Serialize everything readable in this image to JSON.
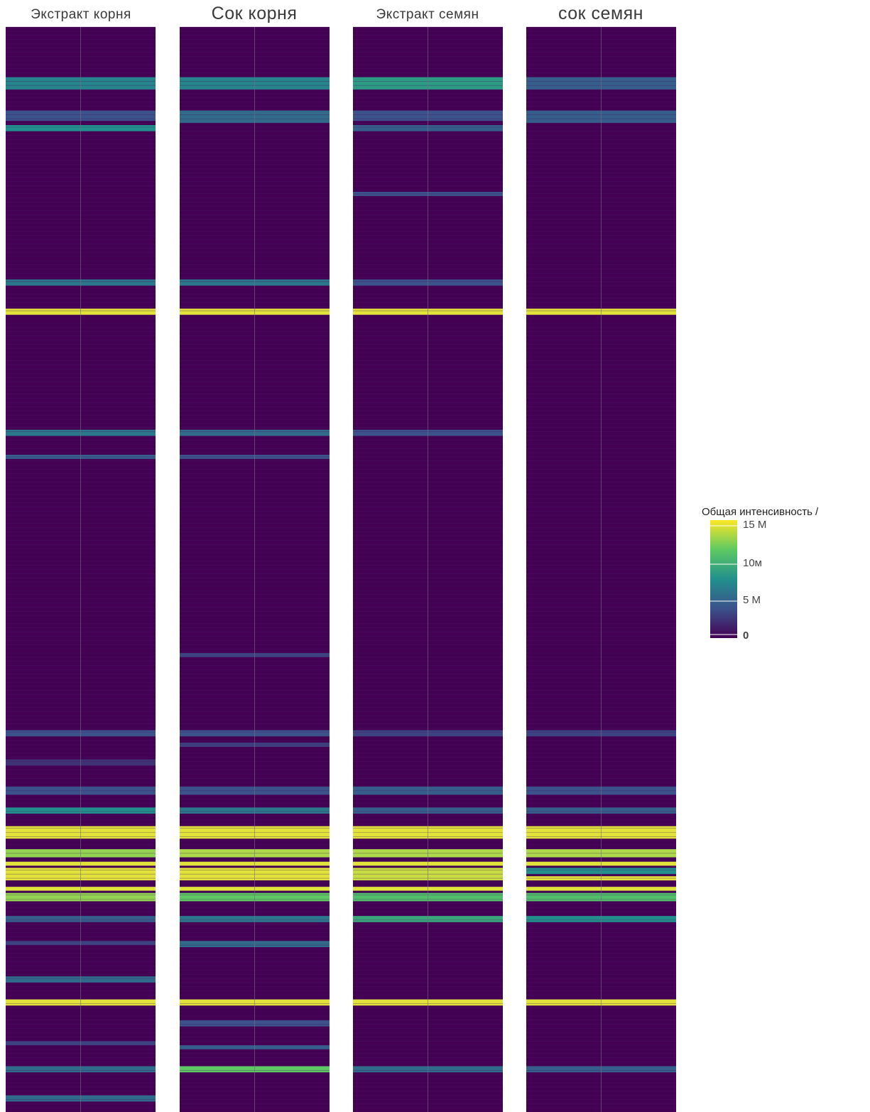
{
  "chart_data": {
    "type": "heatmap",
    "panels": [
      {
        "title": "Экстракт корня",
        "bands": [
          [
            24,
            30,
            0.45
          ],
          [
            40,
            45,
            0.25
          ],
          [
            47,
            50,
            0.5
          ],
          [
            121,
            124,
            0.4
          ],
          [
            135,
            138,
            1.0
          ],
          [
            193,
            196,
            0.4
          ],
          [
            205,
            207,
            0.3
          ],
          [
            337,
            340,
            0.25
          ],
          [
            351,
            354,
            0.15
          ],
          [
            364,
            368,
            0.25
          ],
          [
            374,
            377,
            0.5
          ],
          [
            383,
            389,
            1.0
          ],
          [
            394,
            398,
            0.85
          ],
          [
            400,
            402,
            1.0
          ],
          [
            403,
            409,
            1.0
          ],
          [
            412,
            414,
            1.0
          ],
          [
            415,
            419,
            0.85
          ],
          [
            426,
            429,
            0.3
          ],
          [
            438,
            440,
            0.2
          ],
          [
            455,
            458,
            0.35
          ],
          [
            466,
            469,
            1.0
          ],
          [
            486,
            488,
            0.2
          ],
          [
            498,
            501,
            0.35
          ],
          [
            512,
            515,
            0.35
          ]
        ]
      },
      {
        "title": "Сок корня",
        "bands": [
          [
            24,
            30,
            0.45
          ],
          [
            40,
            46,
            0.35
          ],
          [
            121,
            124,
            0.4
          ],
          [
            135,
            138,
            1.0
          ],
          [
            193,
            196,
            0.35
          ],
          [
            205,
            207,
            0.25
          ],
          [
            300,
            302,
            0.2
          ],
          [
            337,
            340,
            0.25
          ],
          [
            343,
            345,
            0.2
          ],
          [
            364,
            368,
            0.25
          ],
          [
            374,
            377,
            0.4
          ],
          [
            383,
            389,
            1.0
          ],
          [
            394,
            398,
            0.9
          ],
          [
            400,
            402,
            1.0
          ],
          [
            403,
            409,
            1.0
          ],
          [
            412,
            414,
            1.0
          ],
          [
            415,
            419,
            0.75
          ],
          [
            426,
            429,
            0.4
          ],
          [
            438,
            441,
            0.35
          ],
          [
            466,
            469,
            1.0
          ],
          [
            476,
            479,
            0.25
          ],
          [
            488,
            490,
            0.3
          ],
          [
            498,
            501,
            0.75
          ]
        ]
      },
      {
        "title": "Экстракт семян",
        "bands": [
          [
            24,
            30,
            0.55
          ],
          [
            40,
            45,
            0.25
          ],
          [
            47,
            50,
            0.3
          ],
          [
            79,
            81,
            0.25
          ],
          [
            121,
            124,
            0.25
          ],
          [
            135,
            138,
            1.0
          ],
          [
            193,
            196,
            0.25
          ],
          [
            337,
            340,
            0.2
          ],
          [
            364,
            368,
            0.3
          ],
          [
            374,
            377,
            0.3
          ],
          [
            383,
            389,
            1.0
          ],
          [
            394,
            398,
            0.9
          ],
          [
            400,
            402,
            1.0
          ],
          [
            403,
            409,
            0.95
          ],
          [
            412,
            414,
            1.0
          ],
          [
            415,
            419,
            0.7
          ],
          [
            426,
            429,
            0.6
          ],
          [
            466,
            469,
            1.0
          ],
          [
            498,
            501,
            0.35
          ]
        ]
      },
      {
        "title": "сок семян",
        "bands": [
          [
            24,
            30,
            0.3
          ],
          [
            40,
            46,
            0.3
          ],
          [
            135,
            138,
            1.0
          ],
          [
            337,
            340,
            0.2
          ],
          [
            364,
            368,
            0.25
          ],
          [
            374,
            377,
            0.3
          ],
          [
            383,
            389,
            1.0
          ],
          [
            394,
            398,
            0.9
          ],
          [
            400,
            402,
            1.0
          ],
          [
            403,
            406,
            0.5
          ],
          [
            407,
            409,
            1.0
          ],
          [
            412,
            414,
            1.0
          ],
          [
            415,
            419,
            0.7
          ],
          [
            426,
            429,
            0.5
          ],
          [
            466,
            469,
            1.0
          ],
          [
            498,
            501,
            0.3
          ]
        ]
      }
    ],
    "legend": {
      "title": "Общая интенсивность /",
      "ticks": [
        "15 M",
        "10м",
        "5 M",
        "0"
      ],
      "placement": "right"
    },
    "colors": {
      "background": "#440154",
      "low": "#3b528b",
      "mid": "#21908c",
      "high": "#5ec962",
      "max": "#e1e23a",
      "separator": "#4a1a66",
      "column_split": "#7a6a88"
    }
  }
}
